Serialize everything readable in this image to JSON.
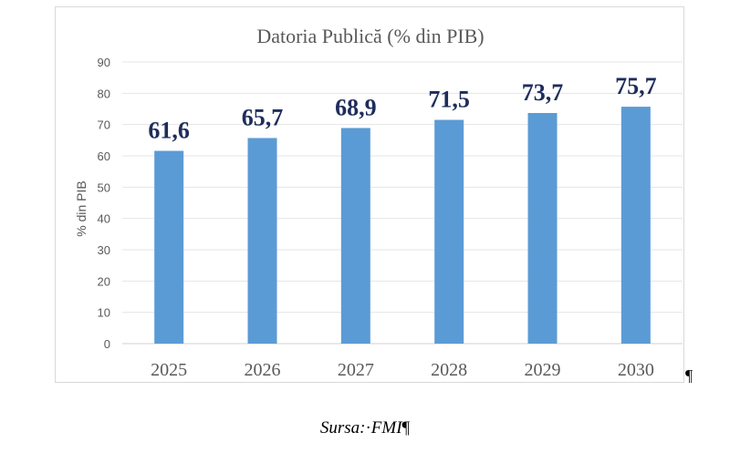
{
  "chart_data": {
    "type": "bar",
    "title": "Datoria Publică (% din PIB)",
    "ylabel": "% din PIB",
    "xlabel": "",
    "categories": [
      "2025",
      "2026",
      "2027",
      "2028",
      "2029",
      "2030"
    ],
    "values": [
      61.6,
      65.7,
      68.9,
      71.5,
      73.7,
      75.7
    ],
    "data_labels": [
      "61,6",
      "65,7",
      "68,9",
      "71,5",
      "73,7",
      "75,7"
    ],
    "ylim": [
      0,
      90
    ],
    "yticks": [
      0,
      10,
      20,
      30,
      40,
      50,
      60,
      70,
      80,
      90
    ],
    "grid": true,
    "legend": "none",
    "bar_color": "#5b9bd5",
    "label_color": "#1f2d5c"
  },
  "document": {
    "pilcrow_after_chart": "¶",
    "source_prefix": "Sursa:",
    "source_separator": "·",
    "source_name": "FMI",
    "source_pilcrow": "¶"
  }
}
